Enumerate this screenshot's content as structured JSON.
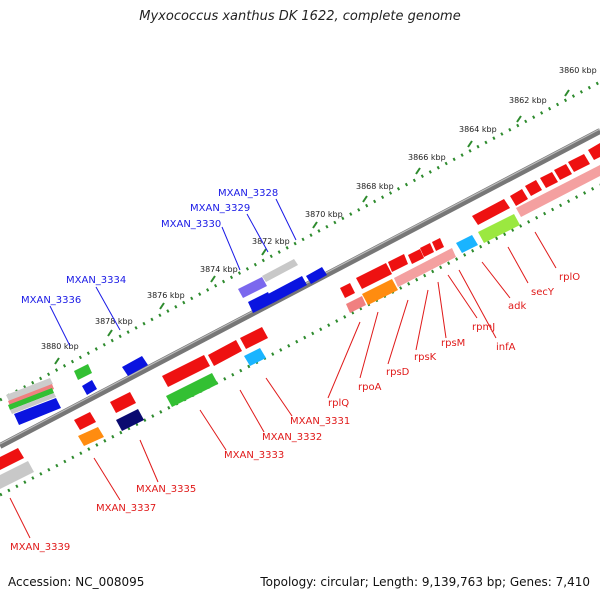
{
  "title": "Myxococcus xanthus DK 1622, complete genome",
  "footer": {
    "accession": "Accession: NC_008095",
    "summary": "Topology: circular; Length: 9,139,763 bp; Genes: 7,410"
  },
  "ticks": [
    "3860 kbp",
    "3862 kbp",
    "3864 kbp",
    "3866 kbp",
    "3868 kbp",
    "3870 kbp",
    "3872 kbp",
    "3874 kbp",
    "3876 kbp",
    "3878 kbp",
    "3880 kbp"
  ],
  "blue_labels": [
    "MXAN_3328",
    "MXAN_3329",
    "MXAN_3330",
    "MXAN_3334",
    "MXAN_3336"
  ],
  "red_labels": [
    "rplO",
    "secY",
    "adk",
    "infA",
    "rpmJ",
    "rpsM",
    "rpsK",
    "rpsD",
    "rpoA",
    "rplQ",
    "MXAN_3331",
    "MXAN_3332",
    "MXAN_3333",
    "MXAN_3335",
    "MXAN_3337",
    "MXAN_3339"
  ],
  "colors": {
    "backbone": "#777777",
    "ruler": "#2e8b2e",
    "gene_red": "#ee1111",
    "gene_pink": "#f08080",
    "gene_blue": "#0a14e0",
    "gene_navy": "#0a0a70",
    "gene_lavender": "#7b68ee",
    "gene_grey": "#c0c0c0",
    "gene_green": "#33c033",
    "gene_lime": "#9be840",
    "gene_orange": "#ff8c10",
    "gene_cyan": "#1ab4ff"
  }
}
